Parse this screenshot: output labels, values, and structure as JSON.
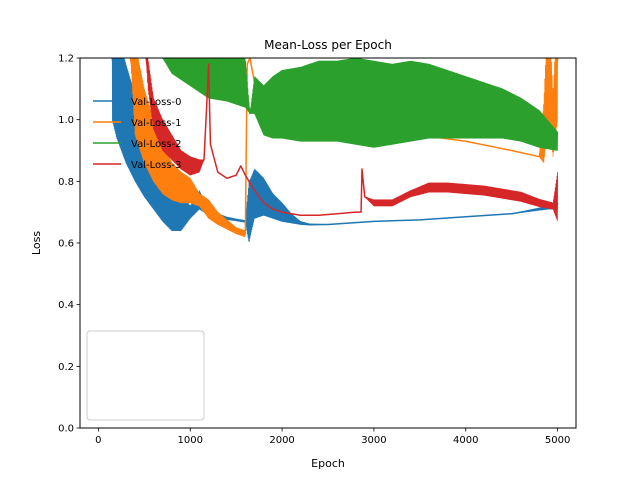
{
  "chart_data": {
    "type": "line",
    "title": "Mean-Loss per Epoch",
    "xlabel": "Epoch",
    "ylabel": "Loss",
    "xlim": [
      -200,
      5200
    ],
    "ylim": [
      0.0,
      1.2
    ],
    "xticks": [
      0,
      1000,
      2000,
      3000,
      4000,
      5000
    ],
    "yticks": [
      0.0,
      0.2,
      0.4,
      0.6,
      0.8,
      1.0,
      1.2
    ],
    "xtick_labels": [
      "0",
      "1000",
      "2000",
      "3000",
      "4000",
      "5000"
    ],
    "ytick_labels": [
      "0.0",
      "0.2",
      "0.4",
      "0.6",
      "0.8",
      "1.0",
      "1.2"
    ],
    "legend": "lower-left",
    "grid": false,
    "series": [
      {
        "name": "Val-Loss-0",
        "color": "#1f77b4",
        "x": [
          150,
          200,
          300,
          400,
          500,
          600,
          700,
          800,
          900,
          1000,
          1100,
          1200,
          1300,
          1400,
          1500,
          1600,
          1640,
          1660,
          1700,
          1800,
          1900,
          2000,
          2100,
          2200,
          2300,
          2500,
          3000,
          3500,
          4000,
          4500,
          4900,
          5000
        ],
        "y": [
          1.2,
          1.12,
          1.02,
          0.94,
          0.87,
          0.82,
          0.77,
          0.73,
          0.7,
          0.7,
          0.74,
          0.7,
          0.69,
          0.68,
          0.675,
          0.67,
          0.7,
          0.72,
          0.76,
          0.75,
          0.72,
          0.7,
          0.68,
          0.665,
          0.66,
          0.66,
          0.67,
          0.675,
          0.685,
          0.695,
          0.715,
          0.72
        ],
        "band": [
          0.2,
          0.18,
          0.16,
          0.14,
          0.12,
          0.11,
          0.1,
          0.09,
          0.06,
          0.02,
          0.03,
          0.01,
          0.005,
          0.004,
          0.003,
          0.003,
          0.1,
          0.09,
          0.08,
          0.06,
          0.04,
          0.03,
          0.015,
          0.005,
          0.002,
          0.0,
          0.0,
          0.0,
          0.0,
          0.0,
          0.005,
          0.01
        ]
      },
      {
        "name": "Val-Loss-1",
        "color": "#ff7f0e",
        "x": [
          350,
          400,
          500,
          600,
          700,
          800,
          900,
          1000,
          1100,
          1200,
          1300,
          1400,
          1500,
          1600,
          1620,
          1650,
          1700,
          1800,
          2000,
          2500,
          3000,
          3500,
          4000,
          4500,
          4800,
          4850,
          4900,
          4950,
          5000
        ],
        "y": [
          1.2,
          1.1,
          0.98,
          0.9,
          0.84,
          0.8,
          0.78,
          0.77,
          0.74,
          0.71,
          0.68,
          0.66,
          0.64,
          0.63,
          1.18,
          1.2,
          1.12,
          1.1,
          1.07,
          1.03,
          0.99,
          0.95,
          0.93,
          0.9,
          0.88,
          0.96,
          1.2,
          0.98,
          1.2
        ],
        "band": [
          0.0,
          0.15,
          0.12,
          0.1,
          0.08,
          0.06,
          0.05,
          0.04,
          0.02,
          0.03,
          0.02,
          0.015,
          0.01,
          0.01,
          0.0,
          0.0,
          0.0,
          0.0,
          0.0,
          0.0,
          0.0,
          0.0,
          0.0,
          0.0,
          0.0,
          0.1,
          0.2,
          0.1,
          0.2
        ]
      },
      {
        "name": "Val-Loss-2",
        "color": "#2ca02c",
        "x": [
          700,
          800,
          1000,
          1200,
          1400,
          1500,
          1600,
          1650,
          1700,
          1800,
          1900,
          2000,
          2200,
          2400,
          2600,
          2800,
          3000,
          3200,
          3400,
          3600,
          3800,
          4000,
          4200,
          4400,
          4600,
          4800,
          5000
        ],
        "y": [
          1.2,
          1.18,
          1.16,
          1.14,
          1.13,
          1.13,
          1.12,
          1.02,
          1.08,
          1.03,
          1.04,
          1.05,
          1.05,
          1.06,
          1.06,
          1.06,
          1.05,
          1.05,
          1.06,
          1.06,
          1.05,
          1.04,
          1.03,
          1.02,
          1.0,
          0.97,
          0.93
        ],
        "band": [
          0.0,
          0.03,
          0.05,
          0.07,
          0.07,
          0.08,
          0.08,
          0.0,
          0.06,
          0.08,
          0.1,
          0.11,
          0.12,
          0.13,
          0.13,
          0.14,
          0.14,
          0.13,
          0.13,
          0.12,
          0.11,
          0.1,
          0.09,
          0.08,
          0.07,
          0.06,
          0.03
        ]
      },
      {
        "name": "Val-Loss-3",
        "color": "#d62728",
        "x": [
          520,
          540,
          600,
          700,
          800,
          900,
          1000,
          1100,
          1150,
          1180,
          1200,
          1220,
          1300,
          1400,
          1500,
          1550,
          1600,
          1700,
          1800,
          1900,
          2000,
          2200,
          2400,
          2600,
          2800,
          2860,
          2870,
          2900,
          3000,
          3200,
          3400,
          3600,
          3800,
          4000,
          4200,
          4400,
          4600,
          4800,
          4950,
          5000
        ],
        "y": [
          1.2,
          1.15,
          1.02,
          0.95,
          0.91,
          0.87,
          0.85,
          0.85,
          0.87,
          1.05,
          1.18,
          0.92,
          0.83,
          0.81,
          0.82,
          0.85,
          0.82,
          0.77,
          0.73,
          0.71,
          0.7,
          0.69,
          0.69,
          0.695,
          0.7,
          0.7,
          0.84,
          0.75,
          0.73,
          0.73,
          0.76,
          0.78,
          0.78,
          0.775,
          0.77,
          0.76,
          0.75,
          0.73,
          0.72,
          0.75
        ],
        "band": [
          0.0,
          0.05,
          0.05,
          0.05,
          0.04,
          0.03,
          0.03,
          0.02,
          0.0,
          0.0,
          0.0,
          0.0,
          0.0,
          0.0,
          0.0,
          0.0,
          0.0,
          0.0,
          0.0,
          0.0,
          0.0,
          0.0,
          0.0,
          0.0,
          0.0,
          0.0,
          0.0,
          0.0,
          0.01,
          0.01,
          0.01,
          0.015,
          0.015,
          0.015,
          0.015,
          0.015,
          0.015,
          0.012,
          0.01,
          0.08
        ]
      }
    ]
  }
}
